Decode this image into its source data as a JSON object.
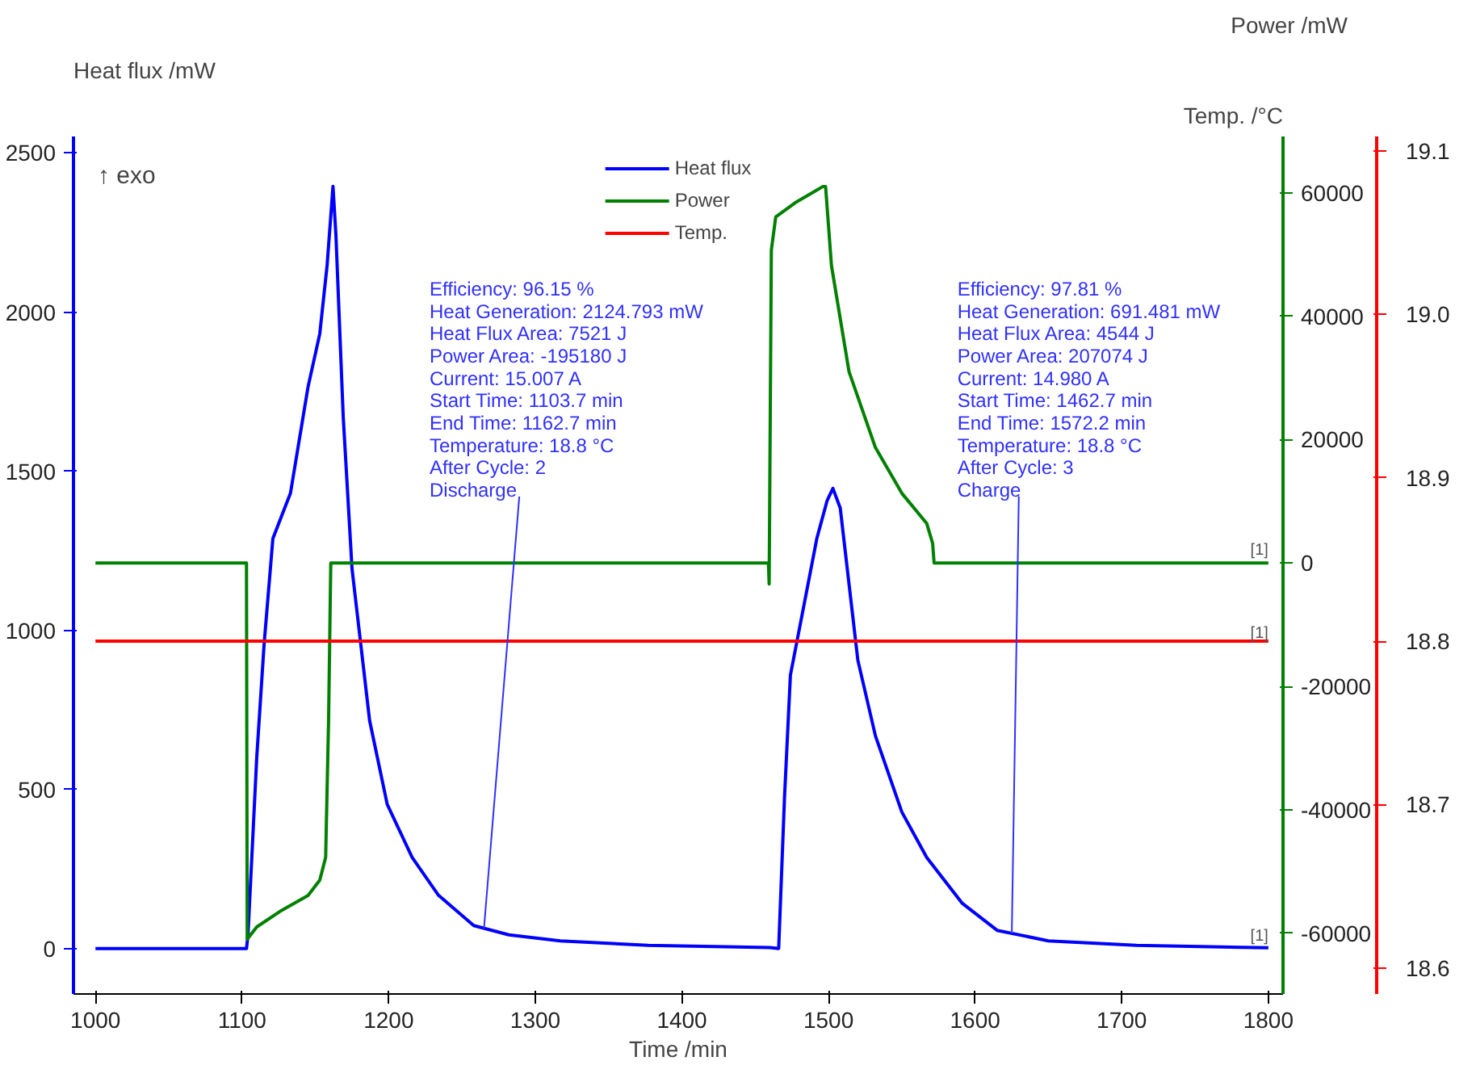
{
  "chart_data": {
    "type": "line",
    "xlabel": "Time /min",
    "ylabel": "Heat flux /mW",
    "y2label": "Power /mW",
    "y3label": "Temp. /°C",
    "xlim": [
      985,
      1810
    ],
    "xticks": [
      1000,
      1100,
      1200,
      1300,
      1400,
      1500,
      1600,
      1700,
      1800
    ],
    "ylim": [
      -143,
      2552
    ],
    "yticks": [
      0,
      500,
      1000,
      1500,
      2000,
      2500
    ],
    "y2lim": [
      -69860,
      69130
    ],
    "y2ticks": [
      -60000,
      -40000,
      -20000,
      0,
      20000,
      40000,
      60000
    ],
    "y3lim": [
      18.584,
      19.109
    ],
    "y3ticks": [
      18.6,
      18.7,
      18.8,
      18.9,
      {
        "value": 19,
        "label": "19.0"
      },
      19.1
    ],
    "grid": false,
    "legend": "top",
    "marker": "none",
    "line_style": "solid",
    "series": [
      {
        "name": "Heat flux",
        "color": "#0000ff",
        "x": [
          1000,
          1050,
          1103,
          1104,
          1110,
          1115,
          1121,
          1133,
          1145,
          1153,
          1158,
          1162,
          1164,
          1169,
          1175,
          1187,
          1199,
          1216,
          1234,
          1258,
          1282,
          1317,
          1377,
          1460,
          1466,
          1470,
          1474,
          1484,
          1492,
          1499,
          1503,
          1508,
          1514,
          1520,
          1532,
          1550,
          1567,
          1591,
          1615,
          1650,
          1710,
          1800
        ],
        "values": [
          0,
          0,
          0,
          40,
          600,
          955,
          1288,
          1431,
          1765,
          1932,
          2147,
          2395,
          2243,
          1670,
          1193,
          716,
          453,
          286,
          167,
          72,
          43,
          24,
          10,
          3,
          0,
          477,
          859,
          1097,
          1288,
          1407,
          1446,
          1384,
          1145,
          906,
          668,
          429,
          286,
          143,
          57,
          24,
          10,
          2
        ]
      },
      {
        "name": "Power",
        "color": "#008000",
        "x": [
          1000,
          1103,
          1103.5,
          1110,
          1127,
          1145,
          1153,
          1157,
          1159,
          1160.5,
          1200,
          1300,
          1400,
          1459,
          1459.5,
          1461,
          1464,
          1478,
          1496,
          1498,
          1502,
          1514,
          1532,
          1550,
          1567,
          1571,
          1572,
          1700,
          1800
        ],
        "values": [
          0,
          0,
          -61000,
          -59000,
          -56300,
          -53900,
          -51400,
          -47700,
          -25600,
          0,
          0,
          0,
          0,
          0,
          -3400,
          50700,
          56100,
          58500,
          61000,
          61000,
          48200,
          31000,
          18700,
          11300,
          6400,
          3200,
          0,
          0,
          0
        ],
        "axis": "y2"
      },
      {
        "name": "Temp.",
        "color": "#ff0000",
        "x": [
          1000,
          1100,
          1200,
          1300,
          1400,
          1500,
          1600,
          1700,
          1800
        ],
        "values": [
          18.8,
          18.8,
          18.8,
          18.8,
          18.8,
          18.8,
          18.8,
          18.8,
          18.8
        ],
        "axis": "y3"
      }
    ],
    "annotations": [
      "Efficiency: 96.15 %",
      "Heat Generation: 2124.793 mW",
      "Heat Flux Area: 7521 J",
      "Power Area: -195180 J",
      "Current: 15.007 A",
      "Start Time: 1103.7 min",
      "End Time: 1162.7 min",
      "Temperature: 18.8 °C",
      "After Cycle: 2",
      {
        "text": "Discharge",
        "x": 1265,
        "y": 63
      },
      "Efficiency: 97.81 %",
      "Heat Generation: 691.481 mW",
      "Heat Flux Area: 4544 J",
      "Power Area: 207074 J",
      "Current: 14.980 A",
      "Start Time: 1462.7 min",
      "End Time: 1572.2 min",
      "Temperature: 18.8 °C",
      "After Cycle: 3",
      {
        "text": "Charge",
        "x": 1625,
        "y": 47
      },
      {
        "text": "[1]",
        "x": 1800,
        "y": 0
      },
      {
        "text": "[1]",
        "x": 1800,
        "y": 1212
      },
      {
        "text": "[1]",
        "x": 1800,
        "y": 950
      },
      "↑ exo"
    ]
  }
}
